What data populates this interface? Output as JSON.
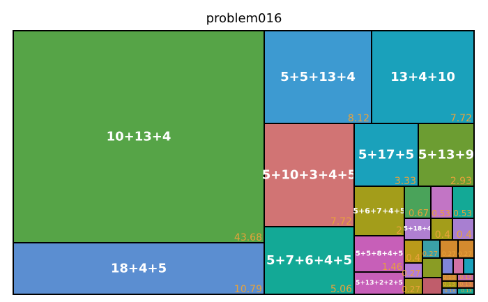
{
  "chart_data": {
    "type": "treemap",
    "title": "problem016",
    "value_color": "#e8a23a",
    "label_color": "#ffffff",
    "border_color": "#000000",
    "items": [
      {
        "label": "10+13+4",
        "value": "43.68",
        "color": "#56a447"
      },
      {
        "label": "18+4+5",
        "value": "10.79",
        "color": "#5b8ed1"
      },
      {
        "label": "5+5+13+4",
        "value": "8.12",
        "color": "#3d9ad1"
      },
      {
        "label": "13+4+10",
        "value": "7.72",
        "color": "#1aa1bb"
      },
      {
        "label": "5+10+3+4+5",
        "value": "7.72",
        "color": "#d17474"
      },
      {
        "label": "5+7+6+4+5",
        "value": "5.06",
        "color": "#13a996"
      },
      {
        "label": "5+17+5",
        "value": "3.33",
        "color": "#1aa1bb"
      },
      {
        "label": "5+13+9",
        "value": "2.93",
        "color": "#6c9d32"
      },
      {
        "label": "5+6+7+4+5",
        "value": "2",
        "color": "#a39d1a"
      },
      {
        "label": "5+5+8+4+5",
        "value": "1.46",
        "color": "#c75fb8"
      },
      {
        "label": "5+13+2+2+5",
        "value": "",
        "color": "#c75fb8"
      },
      {
        "label": "",
        "value": "0.67",
        "color": "#4aa35a"
      },
      {
        "label": "",
        "value": "0.53",
        "color": "#c275c5"
      },
      {
        "label": "",
        "value": "0.53",
        "color": "#13a996"
      },
      {
        "label": "5+18+4",
        "value": "",
        "color": "#b07fd1"
      },
      {
        "label": "",
        "value": "0.4",
        "color": "#a39d1a"
      },
      {
        "label": "",
        "value": "0.4",
        "color": "#a87fd1"
      },
      {
        "label": "",
        "value": "0.4",
        "color": "#ba9a1a"
      },
      {
        "label": "",
        "value": "0.27",
        "color": "#3aa0a8"
      },
      {
        "label": "",
        "value": "0.27",
        "color": "#d38a2e"
      },
      {
        "label": "",
        "value": "0.27",
        "color": "#d38a2e"
      },
      {
        "label": "",
        "value": "0.27",
        "color": "#b37ed6"
      },
      {
        "label": "",
        "value": "0.27",
        "color": "#aa9a1e"
      },
      {
        "label": "",
        "value": "0.27",
        "color": "#8a9c24"
      },
      {
        "label": "",
        "value": "",
        "color": "#7f86d9"
      },
      {
        "label": "",
        "value": "",
        "color": "#d272a4"
      },
      {
        "label": "",
        "value": "",
        "color": "#1aa1bb"
      },
      {
        "label": "",
        "value": "",
        "color": "#c05d6b"
      },
      {
        "label": "",
        "value": "0.13",
        "color": "#d18c3a"
      },
      {
        "label": "",
        "value": "0.13",
        "color": "#c46ca8"
      },
      {
        "label": "",
        "value": "0.13",
        "color": "#a39d1a"
      },
      {
        "label": "",
        "value": "0.13",
        "color": "#d07a4a"
      },
      {
        "label": "",
        "value": "0.13",
        "color": "#5a8ed1"
      },
      {
        "label": "",
        "value": "0.13",
        "color": "#13a996"
      }
    ]
  }
}
